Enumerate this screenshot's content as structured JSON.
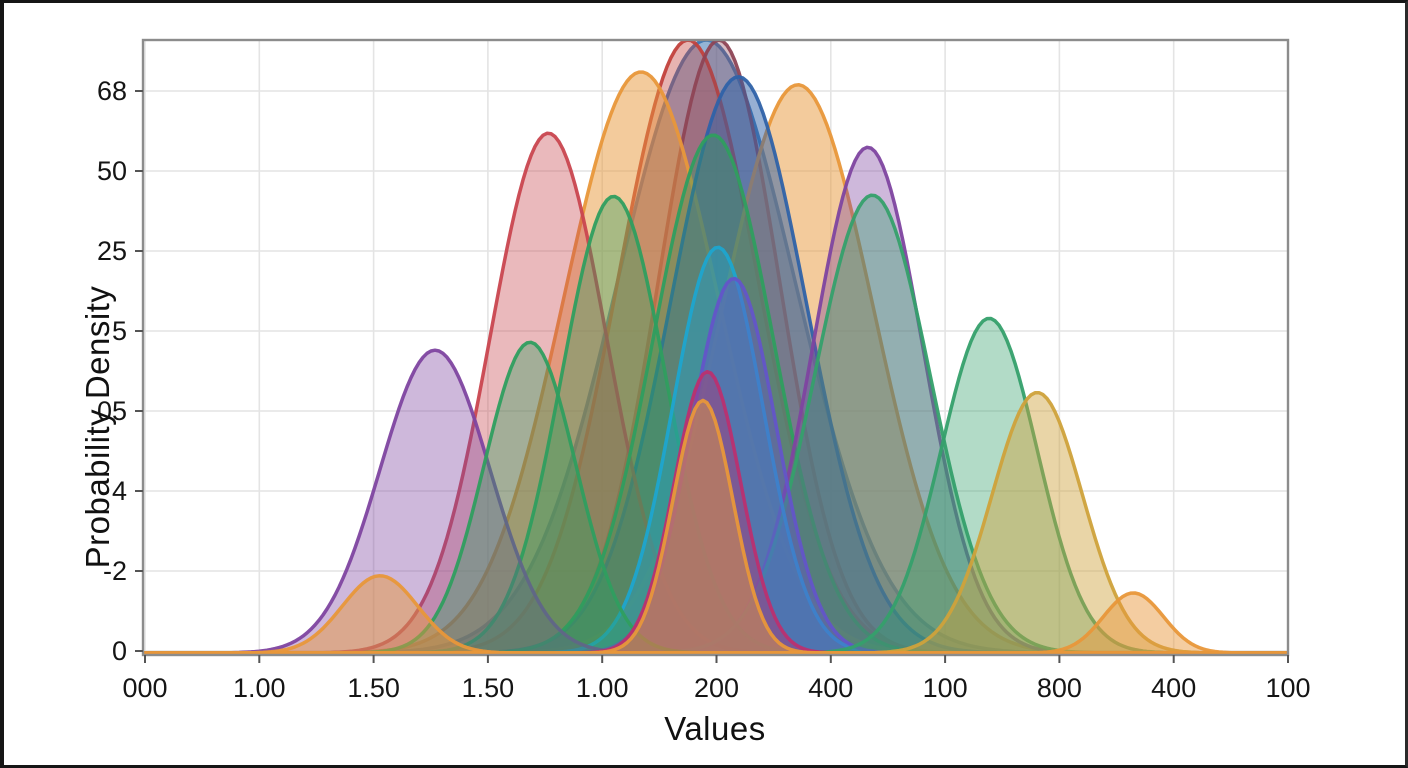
{
  "chart_data": {
    "type": "area",
    "subtype": "overlapping-density-curves",
    "title": "",
    "xlabel": "Values",
    "ylabel": "Probability Density",
    "x_tick_labels": [
      "000",
      "1.00",
      "1.50",
      "1.50",
      "1.00",
      "200",
      "400",
      "100",
      "800",
      "400",
      "100"
    ],
    "y_tick_labels": [
      "68",
      "50",
      "25",
      "5",
      "05",
      "4",
      "-2",
      "0"
    ],
    "grid": true,
    "legend": "none",
    "axes_note": "tick labels transcribed as printed; curve params are fractions of plot area (mu,sigma of width; peak of height above baseline)",
    "series": [
      {
        "name": "density-blue-wide",
        "color": "#3c78b4",
        "fill_opacity": 0.55,
        "mu": 0.492,
        "sigma": 0.0775,
        "peak": 1.0
      },
      {
        "name": "density-red-tall",
        "color": "#c2413c",
        "fill_opacity": 0.4,
        "mu": 0.476,
        "sigma": 0.0615,
        "peak": 1.0
      },
      {
        "name": "density-maroon",
        "color": "#8e4455",
        "fill_opacity": 0.35,
        "mu": 0.503,
        "sigma": 0.053,
        "peak": 1.0
      },
      {
        "name": "density-orange-left",
        "color": "#e8973a",
        "fill_opacity": 0.5,
        "mu": 0.435,
        "sigma": 0.068,
        "peak": 0.948
      },
      {
        "name": "density-orange-right",
        "color": "#e8973a",
        "fill_opacity": 0.5,
        "mu": 0.572,
        "sigma": 0.066,
        "peak": 0.927
      },
      {
        "name": "density-blue-2",
        "color": "#2f62a8",
        "fill_opacity": 0.5,
        "mu": 0.52,
        "sigma": 0.0595,
        "peak": 0.94
      },
      {
        "name": "density-red-left",
        "color": "#c9464f",
        "fill_opacity": 0.38,
        "mu": 0.354,
        "sigma": 0.051,
        "peak": 0.848
      },
      {
        "name": "density-green-tall",
        "color": "#2f9e5f",
        "fill_opacity": 0.38,
        "mu": 0.498,
        "sigma": 0.0525,
        "peak": 0.845
      },
      {
        "name": "density-purple-right",
        "color": "#7e44a0",
        "fill_opacity": 0.38,
        "mu": 0.633,
        "sigma": 0.048,
        "peak": 0.825
      },
      {
        "name": "density-green-mid",
        "color": "#2f9e5f",
        "fill_opacity": 0.38,
        "mu": 0.411,
        "sigma": 0.0455,
        "peak": 0.745
      },
      {
        "name": "density-green-right-1",
        "color": "#35a06b",
        "fill_opacity": 0.38,
        "mu": 0.637,
        "sigma": 0.0505,
        "peak": 0.747
      },
      {
        "name": "density-cyan",
        "color": "#1ea5cf",
        "fill_opacity": 0.42,
        "mu": 0.502,
        "sigma": 0.0395,
        "peak": 0.662
      },
      {
        "name": "density-blueviolet",
        "color": "#6355c8",
        "fill_opacity": 0.45,
        "mu": 0.516,
        "sigma": 0.037,
        "peak": 0.611
      },
      {
        "name": "density-green-right-2",
        "color": "#35a06b",
        "fill_opacity": 0.38,
        "mu": 0.739,
        "sigma": 0.042,
        "peak": 0.546
      },
      {
        "name": "density-purple-left",
        "color": "#7e44a0",
        "fill_opacity": 0.38,
        "mu": 0.255,
        "sigma": 0.048,
        "peak": 0.494
      },
      {
        "name": "density-green-small",
        "color": "#2f9e5f",
        "fill_opacity": 0.38,
        "mu": 0.338,
        "sigma": 0.04,
        "peak": 0.507
      },
      {
        "name": "density-magenta",
        "color": "#b93070",
        "fill_opacity": 0.4,
        "mu": 0.493,
        "sigma": 0.029,
        "peak": 0.459
      },
      {
        "name": "density-gold-right",
        "color": "#cfa23b",
        "fill_opacity": 0.45,
        "mu": 0.781,
        "sigma": 0.0395,
        "peak": 0.425
      },
      {
        "name": "density-orange-center",
        "color": "#e8973a",
        "fill_opacity": 0.48,
        "mu": 0.489,
        "sigma": 0.0262,
        "peak": 0.412
      },
      {
        "name": "density-orange-bump-l",
        "color": "#e8973a",
        "fill_opacity": 0.48,
        "mu": 0.207,
        "sigma": 0.033,
        "peak": 0.126
      },
      {
        "name": "density-orange-bump-r",
        "color": "#e8973a",
        "fill_opacity": 0.48,
        "mu": 0.865,
        "sigma": 0.0262,
        "peak": 0.098
      }
    ],
    "style": {
      "frame_color": "#8c8c8c",
      "grid_color": "#e4e4e4",
      "tick_color": "#555555",
      "label_color": "#151515",
      "stroke_width": 3.5
    }
  }
}
